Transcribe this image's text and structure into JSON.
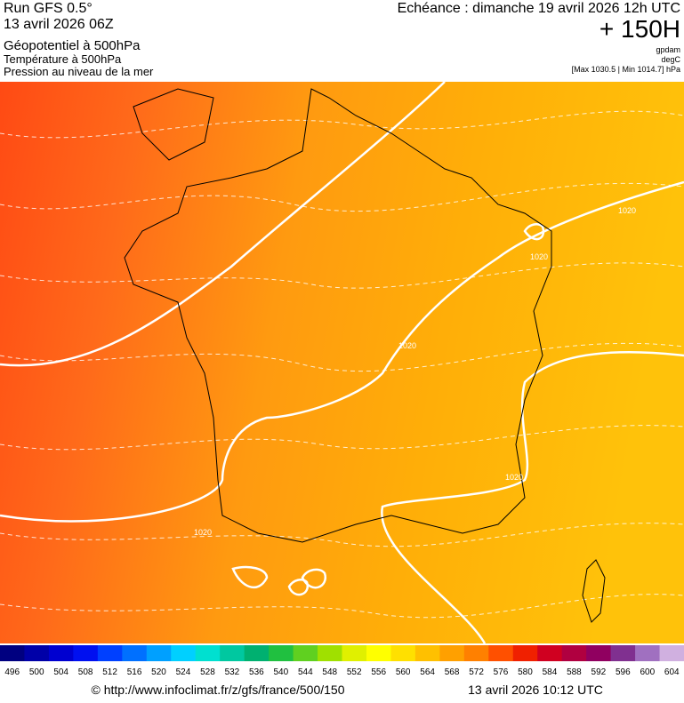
{
  "header": {
    "run": "Run GFS 0.5°",
    "date": "13 avril 2026 06Z",
    "field1": "Géopotentiel à 500hPa",
    "field2": "Température à 500hPa",
    "field3": "Pression au niveau de la mer",
    "valid": "Echéance : dimanche 19 avril 2026 12h UTC",
    "lead": "+ 150H",
    "unit1": "gpdam",
    "unit2": "degC",
    "range": "[Max 1030.5 | Min 1014.7] hPa"
  },
  "map": {
    "contour_labels": [
      "1020",
      "1020",
      "1020",
      "1020",
      "1020"
    ]
  },
  "scale": {
    "labels": [
      496,
      500,
      504,
      508,
      512,
      516,
      520,
      524,
      528,
      532,
      536,
      540,
      544,
      548,
      552,
      556,
      560,
      564,
      568,
      572,
      576,
      580,
      584,
      588,
      592,
      596,
      600,
      604
    ],
    "colors": [
      "#000080",
      "#0000a8",
      "#0000d0",
      "#0010f0",
      "#0040ff",
      "#0070ff",
      "#00a0ff",
      "#00d0ff",
      "#00e0d0",
      "#00c8a0",
      "#00b070",
      "#20c040",
      "#60d020",
      "#a0e000",
      "#e0f000",
      "#ffff00",
      "#ffe000",
      "#ffc000",
      "#ffa000",
      "#ff8000",
      "#ff5000",
      "#f02000",
      "#d00020",
      "#b00040",
      "#900060",
      "#803090",
      "#a070c0",
      "#d0b0e0"
    ]
  },
  "footer": {
    "source": "© http://www.infoclimat.fr/z/gfs/france/500/150",
    "generated": "13 avril 2026 10:12 UTC"
  }
}
